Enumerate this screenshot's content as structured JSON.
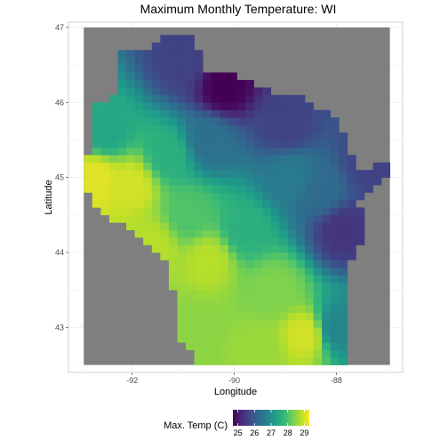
{
  "chart_data": {
    "type": "heatmap",
    "title": "Maximum Monthly Temperature: WI",
    "xlabel": "Longitude",
    "ylabel": "Latitude",
    "xlim": [
      -93.25,
      -86.7
    ],
    "ylim": [
      42.4,
      47.07
    ],
    "x_ticks": [
      -92,
      -90,
      -88
    ],
    "y_ticks": [
      43,
      44,
      45,
      46,
      47
    ],
    "grid": true,
    "panel_background": "#7f7f7f",
    "data_extent": {
      "lon": [
        -92.95,
        -86.95
      ],
      "lat": [
        42.5,
        47.0
      ]
    },
    "cell_size_deg": {
      "lon": 0.1667,
      "lat": 0.1
    },
    "colorscale": "viridis",
    "color_range": [
      24.7,
      29.3
    ],
    "colors": [
      "#440154",
      "#482878",
      "#3e4a89",
      "#31688e",
      "#26828e",
      "#1f9e89",
      "#35b779",
      "#6ece58",
      "#b5de2b",
      "#fde725"
    ],
    "temperature_field_anchors": [
      {
        "lon": -90.2,
        "lat": 46.2,
        "value": 24.7
      },
      {
        "lon": -91.0,
        "lat": 46.55,
        "value": 25.6
      },
      {
        "lon": -89.0,
        "lat": 45.7,
        "value": 25.6
      },
      {
        "lon": -87.9,
        "lat": 44.3,
        "value": 25.4
      },
      {
        "lon": -87.3,
        "lat": 45.2,
        "value": 25.6
      },
      {
        "lon": -90.5,
        "lat": 45.5,
        "value": 26.4
      },
      {
        "lon": -92.5,
        "lat": 45.6,
        "value": 27.4
      },
      {
        "lon": -92.7,
        "lat": 45.0,
        "value": 29.1
      },
      {
        "lon": -92.0,
        "lat": 44.9,
        "value": 29.0
      },
      {
        "lon": -91.6,
        "lat": 44.1,
        "value": 28.8
      },
      {
        "lon": -90.9,
        "lat": 44.5,
        "value": 28.0
      },
      {
        "lon": -89.8,
        "lat": 44.3,
        "value": 27.6
      },
      {
        "lon": -89.2,
        "lat": 43.5,
        "value": 28.4
      },
      {
        "lon": -88.6,
        "lat": 42.9,
        "value": 29.0
      },
      {
        "lon": -89.5,
        "lat": 42.7,
        "value": 28.6
      },
      {
        "lon": -90.9,
        "lat": 43.0,
        "value": 28.5
      },
      {
        "lon": -90.5,
        "lat": 43.9,
        "value": 28.8
      },
      {
        "lon": -88.0,
        "lat": 43.0,
        "value": 26.8
      },
      {
        "lon": -88.3,
        "lat": 44.8,
        "value": 26.3
      },
      {
        "lon": -88.9,
        "lat": 45.0,
        "value": 26.6
      },
      {
        "lon": -91.3,
        "lat": 45.3,
        "value": 27.6
      }
    ],
    "state_outline": [
      [
        -92.95,
        45.0
      ],
      [
        -92.85,
        45.35
      ],
      [
        -92.85,
        45.95
      ],
      [
        -92.3,
        46.1
      ],
      [
        -92.3,
        46.65
      ],
      [
        -91.6,
        46.75
      ],
      [
        -91.3,
        46.9
      ],
      [
        -90.8,
        46.9
      ],
      [
        -90.6,
        46.45
      ],
      [
        -89.9,
        46.35
      ],
      [
        -89.1,
        46.1
      ],
      [
        -88.6,
        46.05
      ],
      [
        -88.3,
        45.9
      ],
      [
        -87.95,
        45.8
      ],
      [
        -87.85,
        45.55
      ],
      [
        -87.6,
        45.2
      ],
      [
        -87.4,
        45.05
      ],
      [
        -87.0,
        45.25
      ],
      [
        -86.95,
        45.1
      ],
      [
        -87.55,
        44.65
      ],
      [
        -87.45,
        44.2
      ],
      [
        -87.75,
        43.8
      ],
      [
        -87.85,
        43.2
      ],
      [
        -87.8,
        42.5
      ],
      [
        -90.65,
        42.5
      ],
      [
        -91.1,
        42.9
      ],
      [
        -91.2,
        43.5
      ],
      [
        -91.3,
        43.9
      ],
      [
        -91.85,
        44.2
      ],
      [
        -92.3,
        44.4
      ],
      [
        -92.75,
        44.6
      ]
    ],
    "legend": {
      "title": "Max. Temp (C)",
      "position": "bottom",
      "ticks": [
        25,
        26,
        27,
        28,
        29
      ]
    }
  }
}
